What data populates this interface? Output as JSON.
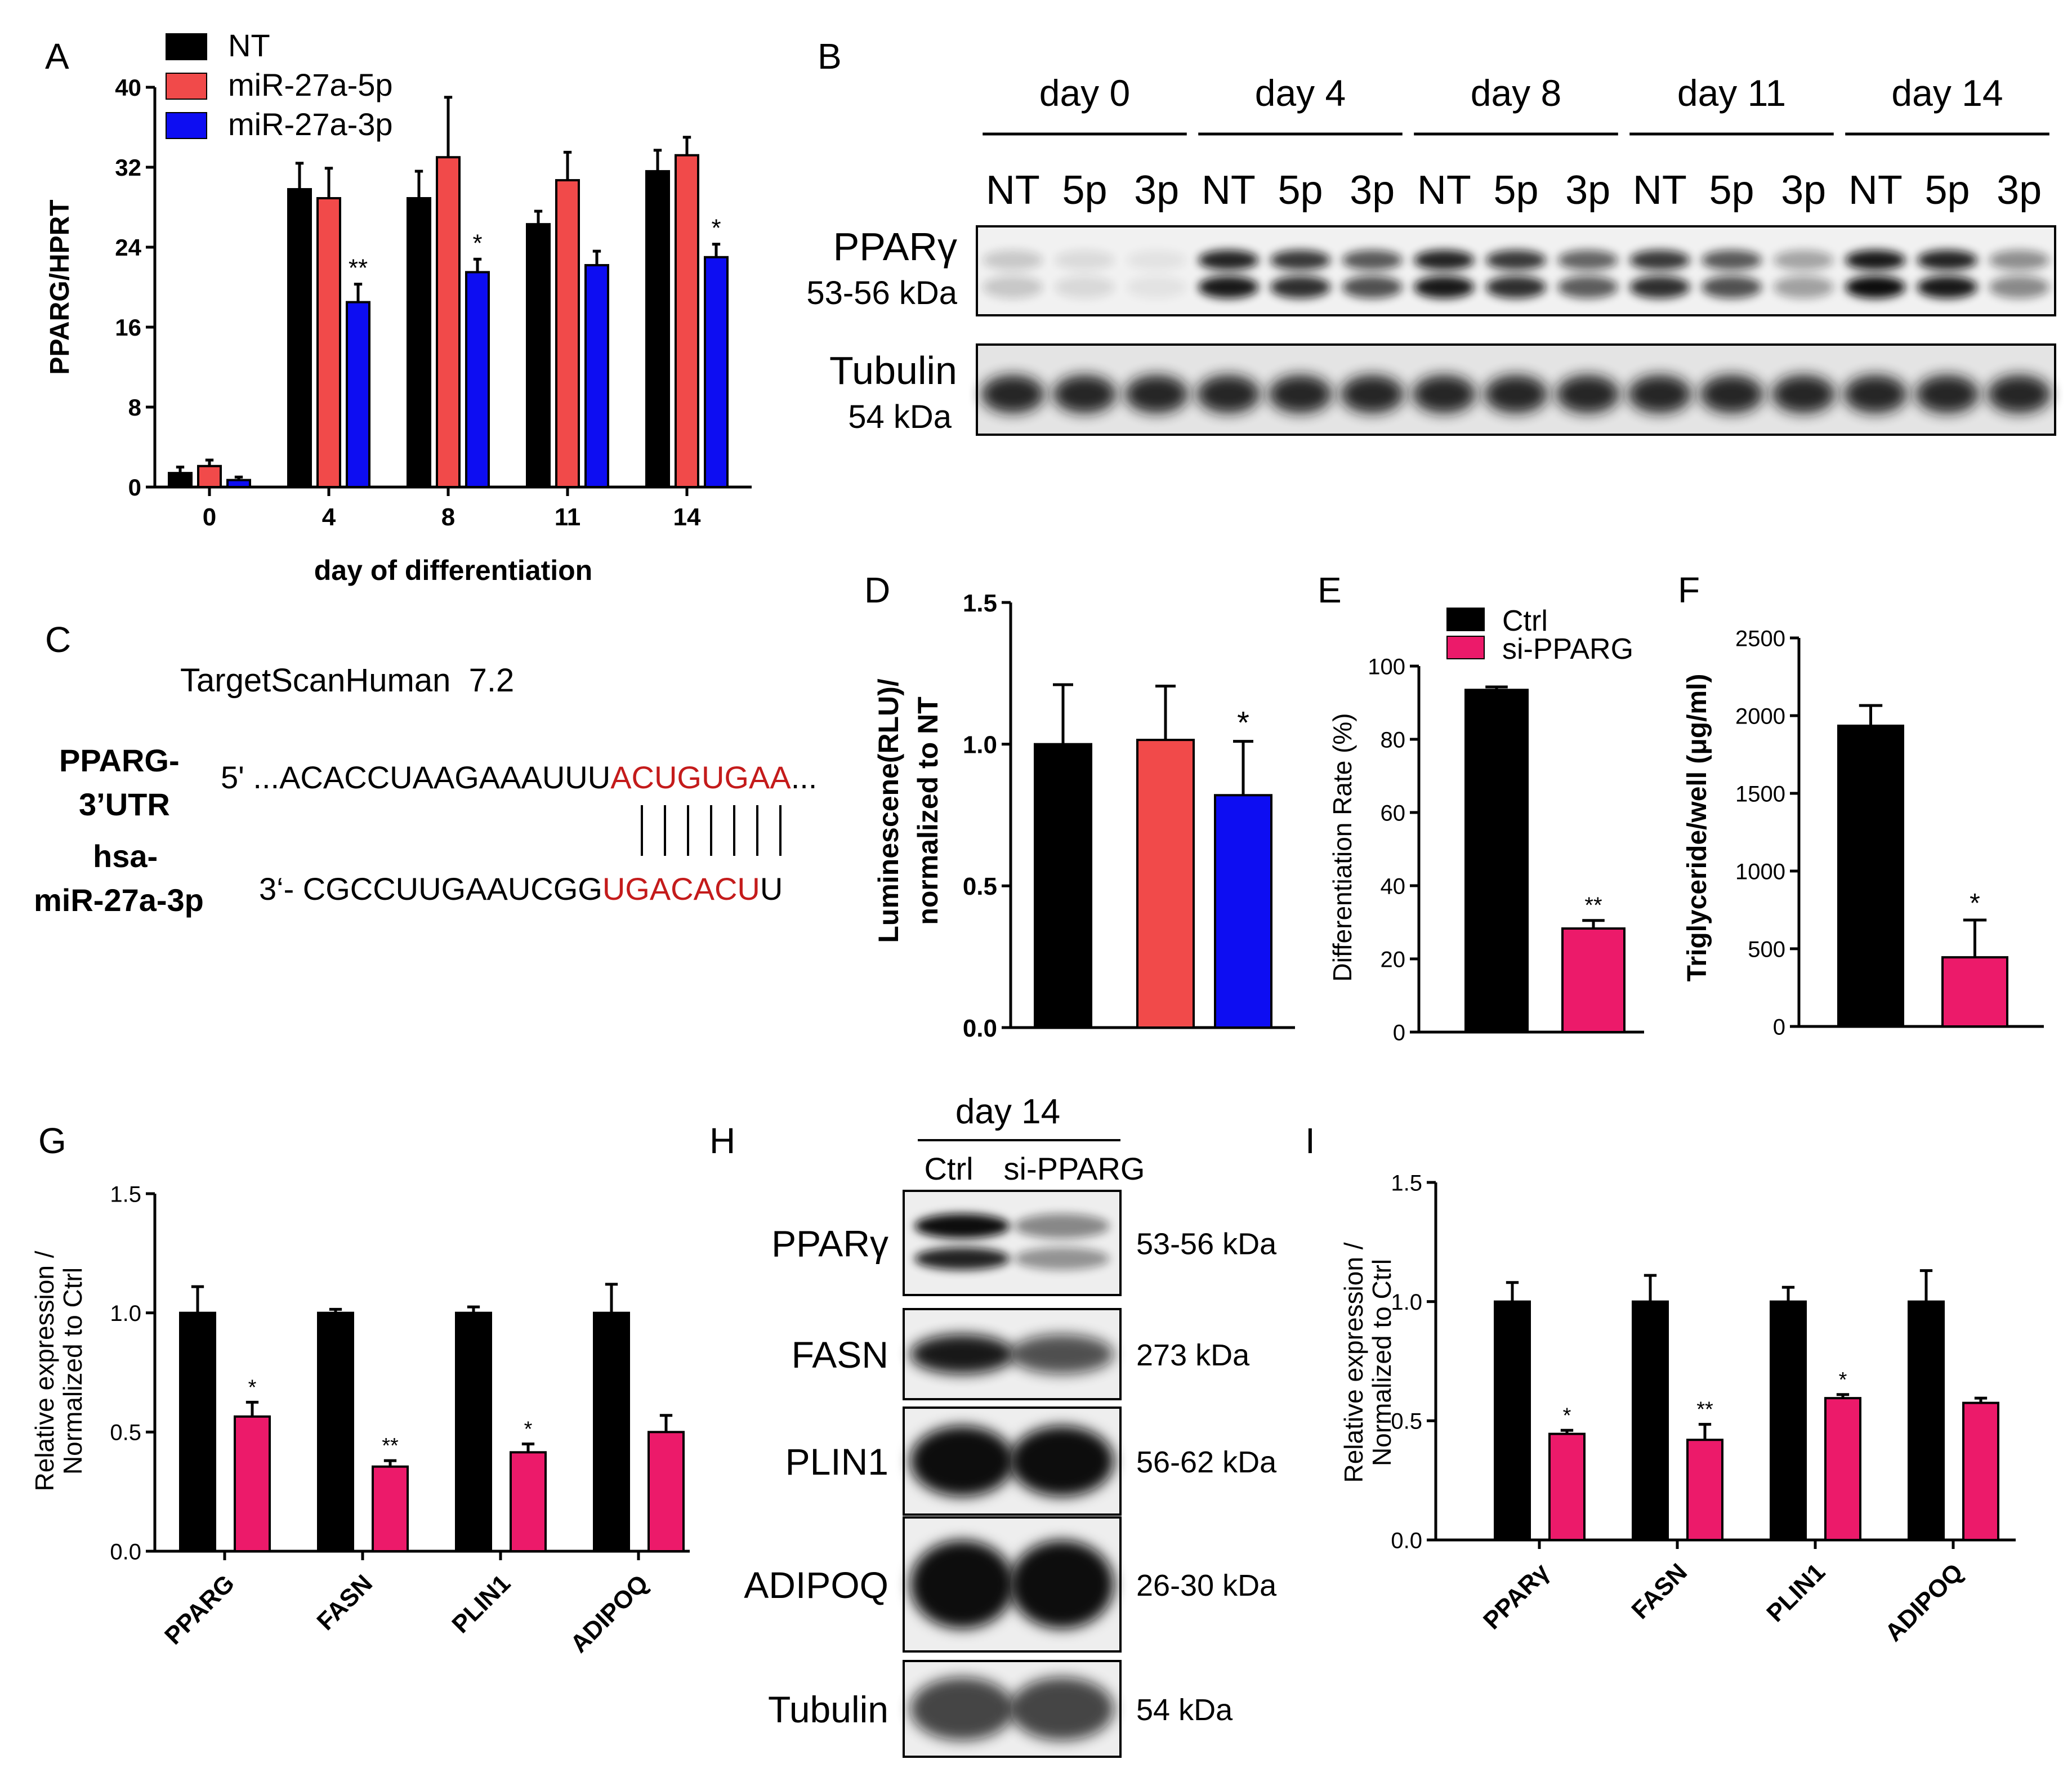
{
  "colors": {
    "nt": "#000000",
    "mir5p": "#f14a4a",
    "mir3p": "#0d0df2",
    "ctrl": "#000000",
    "si": "#ec1a6a",
    "red_text": "#c8201f",
    "blue_text": "#1c36c9",
    "seq_red": "#c41b1b"
  },
  "panel_labels": {
    "A": "A",
    "B": "B",
    "C": "C",
    "D": "D",
    "E": "E",
    "F": "F",
    "G": "G",
    "H": "H",
    "I": "I"
  },
  "chart_data": [
    {
      "id": "A",
      "type": "bar",
      "categories": [
        "0",
        "4",
        "8",
        "11",
        "14"
      ],
      "series": [
        {
          "name": "NT",
          "values": [
            1.4,
            29.8,
            28.9,
            26.3,
            31.6
          ],
          "errors": [
            0.6,
            2.6,
            2.7,
            1.3,
            2.1
          ]
        },
        {
          "name": "miR-27a-5p",
          "values": [
            2.1,
            28.9,
            33.0,
            30.7,
            33.2
          ],
          "errors": [
            0.6,
            3.0,
            6.0,
            2.8,
            1.8
          ]
        },
        {
          "name": "miR-27a-3p",
          "values": [
            0.7,
            18.5,
            21.5,
            22.2,
            23.0
          ],
          "errors": [
            0.3,
            1.8,
            1.3,
            1.4,
            1.3
          ]
        }
      ],
      "significance": [
        {
          "category": "4",
          "series": "miR-27a-3p",
          "label": "**"
        },
        {
          "category": "8",
          "series": "miR-27a-3p",
          "label": "*"
        },
        {
          "category": "14",
          "series": "miR-27a-3p",
          "label": "*"
        }
      ],
      "xlabel": "day of differentiation",
      "ylabel": "PPARG/HPRT",
      "ylim": [
        0,
        40
      ],
      "yticks": [
        "0",
        "8",
        "16",
        "24",
        "32",
        "40"
      ],
      "legend": [
        "NT",
        "miR-27a-5p",
        "miR-27a-3p"
      ],
      "legend_position": "top-left"
    },
    {
      "id": "D",
      "type": "bar",
      "categories": [
        "NT",
        "miR-27a-5p",
        "miR-27a-3p"
      ],
      "values": [
        1.0,
        1.015,
        0.82
      ],
      "errors": [
        0.21,
        0.19,
        0.19
      ],
      "significance": [
        {
          "index": 2,
          "label": "*"
        }
      ],
      "ylabel_line1": "Luminescene(RLU)/",
      "ylabel_line2": "normalized to NT",
      "ylim": [
        0,
        1.5
      ],
      "yticks": [
        "0.0",
        "0.5",
        "1.0",
        "1.5"
      ]
    },
    {
      "id": "E",
      "type": "bar",
      "categories": [
        "Ctrl",
        "si-PPARG"
      ],
      "values": [
        93.5,
        28.3
      ],
      "errors": [
        0.8,
        2.2
      ],
      "significance": [
        {
          "index": 1,
          "label": "**"
        }
      ],
      "ylabel": "Differentiation Rate (%)",
      "ylim": [
        0,
        100
      ],
      "yticks": [
        "0",
        "20",
        "40",
        "60",
        "80",
        "100"
      ],
      "legend": [
        "Ctrl",
        "si-PPARG"
      ],
      "legend_position": "top"
    },
    {
      "id": "F",
      "type": "bar",
      "categories": [
        "Ctrl",
        "si-PPARG"
      ],
      "values": [
        1935,
        445
      ],
      "errors": [
        130,
        240
      ],
      "significance": [
        {
          "index": 1,
          "label": "*"
        }
      ],
      "ylabel": "Triglyceride/well (μg/ml)",
      "ylim": [
        0,
        2500
      ],
      "yticks": [
        "0",
        "500",
        "1000",
        "1500",
        "2000",
        "2500"
      ]
    },
    {
      "id": "G",
      "type": "bar",
      "categories": [
        "PPARG",
        "FASN",
        "PLIN1",
        "ADIPOQ"
      ],
      "series": [
        {
          "name": "Ctrl",
          "values": [
            1.0,
            1.0,
            1.0,
            1.0
          ],
          "errors": [
            0.11,
            0.015,
            0.025,
            0.12
          ]
        },
        {
          "name": "si-PPARG",
          "values": [
            0.565,
            0.355,
            0.415,
            0.5
          ],
          "errors": [
            0.06,
            0.025,
            0.035,
            0.07
          ]
        }
      ],
      "significance": [
        {
          "category": "PPARG",
          "label": "*"
        },
        {
          "category": "FASN",
          "label": "**"
        },
        {
          "category": "PLIN1",
          "label": "*"
        }
      ],
      "ylabel_line1": "Relative expression /",
      "ylabel_line2": "Normalized to Ctrl",
      "ylim": [
        0,
        1.5
      ],
      "yticks": [
        "0.0",
        "0.5",
        "1.0",
        "1.5"
      ]
    },
    {
      "id": "I",
      "type": "bar",
      "categories": [
        "PPARγ",
        "FASN",
        "PLIN1",
        "ADIPOQ"
      ],
      "series": [
        {
          "name": "Ctrl",
          "values": [
            1.0,
            1.0,
            1.0,
            1.0
          ],
          "errors": [
            0.08,
            0.11,
            0.06,
            0.13
          ]
        },
        {
          "name": "si-PPARG",
          "values": [
            0.445,
            0.42,
            0.595,
            0.575
          ],
          "errors": [
            0.015,
            0.065,
            0.015,
            0.02
          ]
        }
      ],
      "significance": [
        {
          "category": "PPARγ",
          "label": "*"
        },
        {
          "category": "FASN",
          "label": "**"
        },
        {
          "category": "PLIN1",
          "label": "*"
        }
      ],
      "ylabel_line1": "Relative expression /",
      "ylabel_line2": "Normalized to Ctrl",
      "ylim": [
        0,
        1.5
      ],
      "yticks": [
        "0.0",
        "0.5",
        "1.0",
        "1.5"
      ]
    }
  ],
  "blot_B": {
    "days": [
      "day 0",
      "day 4",
      "day 8",
      "day 11",
      "day 14"
    ],
    "lanes": [
      "NT",
      "5p",
      "3p"
    ],
    "rows": [
      {
        "name": "PPARγ",
        "size": "53-56 kDa"
      },
      {
        "name": "Tubulin",
        "size": "54 kDa"
      }
    ]
  },
  "seq_C": {
    "title": "TargetScanHuman  7.2",
    "gene_line1": "PPARG-",
    "gene_line2": "3’UTR",
    "mir_line1": "hsa-",
    "mir_line2": "miR-27a-3p",
    "utr_prefix": "5' ...ACACCUAAGAAAUUU",
    "utr_seed": "ACUGUGAA",
    "utr_suffix": "...",
    "mir_prefix": "3‘- CGCCUUGAAUCGG",
    "mir_seed": "UGACACU",
    "mir_suffix": "U"
  },
  "blot_H": {
    "header": "day 14",
    "lanes": [
      "Ctrl",
      "si-PPARG"
    ],
    "rows": [
      {
        "name": "PPARγ",
        "size": "53-56 kDa"
      },
      {
        "name": "FASN",
        "size": "273 kDa"
      },
      {
        "name": "PLIN1",
        "size": "56-62 kDa"
      },
      {
        "name": "ADIPOQ",
        "size": "26-30 kDa"
      },
      {
        "name": "Tubulin",
        "size": "54 kDa"
      }
    ]
  }
}
